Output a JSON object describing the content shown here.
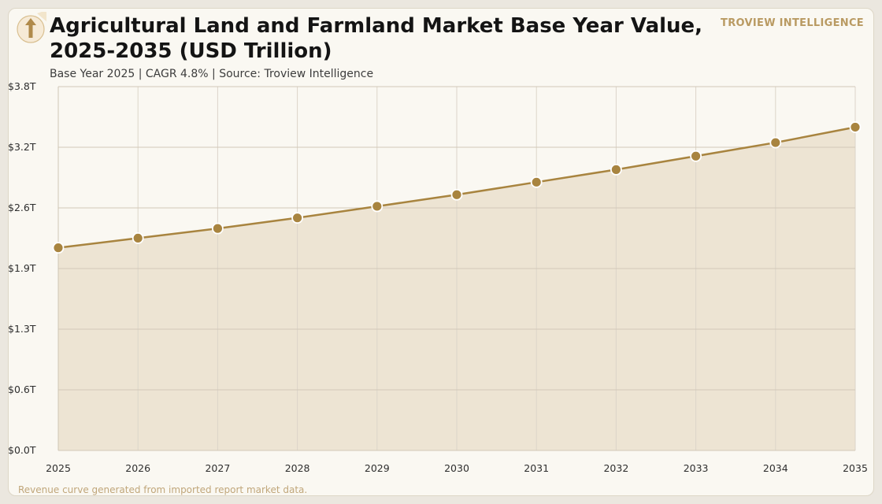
{
  "header": {
    "title": "Agricultural Land and Farmland Market Base Year Value, 2025-2035 (USD Trillion)",
    "subtitle": "Base Year 2025 | CAGR 4.8% | Source: Troview Intelligence",
    "brand": "TROVIEW INTELLIGENCE",
    "logo_icon": "upward-arrow-icon"
  },
  "footer": {
    "note": "Revenue curve generated from imported report market data."
  },
  "colors": {
    "line": "#a8843f",
    "marker": "#a8843f",
    "area": "#ede4d3",
    "grid_h": "#d2c8b8",
    "grid_v": "#dcd5c9",
    "brand": "#b99a62"
  },
  "chart_data": {
    "type": "area",
    "title": "Agricultural Land and Farmland Market Base Year Value, 2025-2035 (USD Trillion)",
    "xlabel": "",
    "ylabel": "",
    "x": [
      "2025",
      "2026",
      "2027",
      "2028",
      "2029",
      "2030",
      "2031",
      "2032",
      "2033",
      "2034",
      "2035"
    ],
    "series": [
      {
        "values": [
          2.1,
          2.2,
          2.3,
          2.41,
          2.53,
          2.65,
          2.78,
          2.91,
          3.05,
          3.19,
          3.35
        ]
      }
    ],
    "y_ticks": [
      "$0.0T",
      "$0.6T",
      "$1.3T",
      "$1.9T",
      "$2.6T",
      "$3.2T",
      "$3.8T"
    ],
    "ylim": [
      0,
      3.77
    ],
    "grid": true,
    "legend": "none",
    "markers": true
  }
}
